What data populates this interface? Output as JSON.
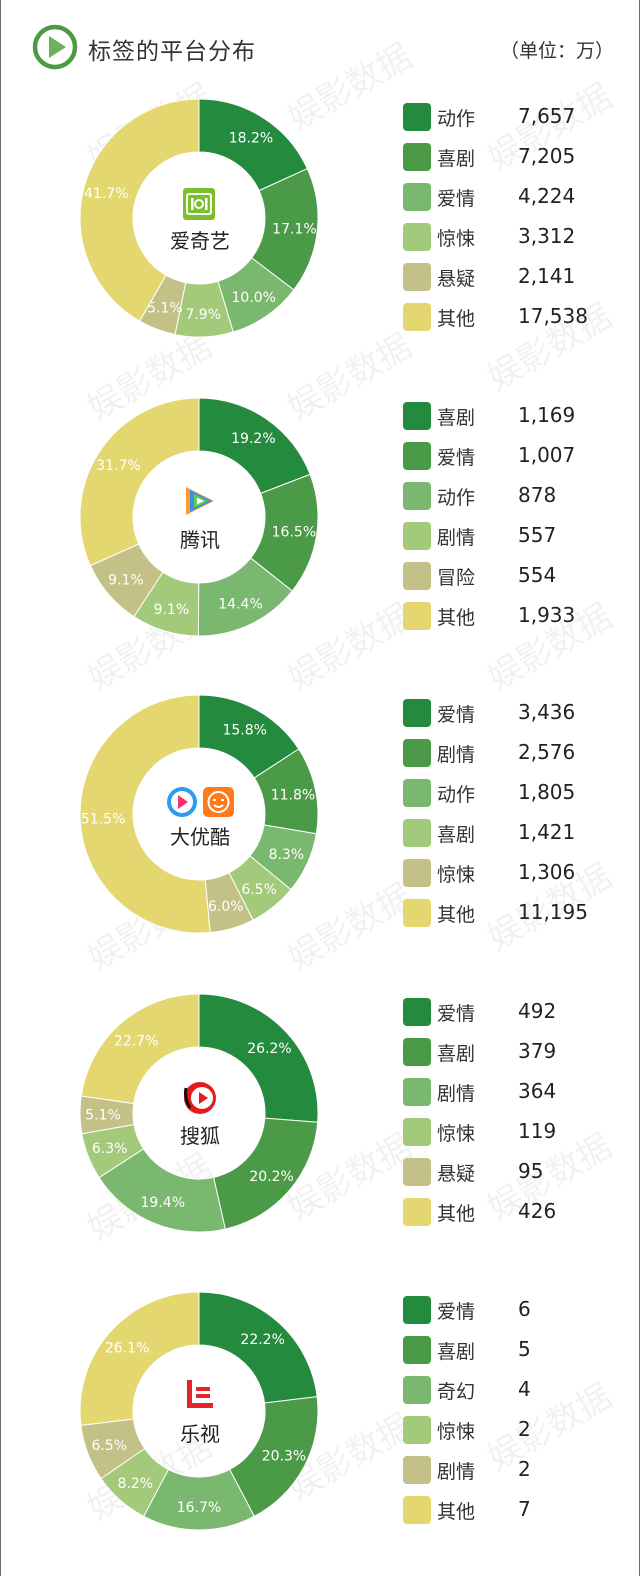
{
  "header": {
    "title": "标签的平台分布",
    "unit": "（单位：万）"
  },
  "watermark": "娱影数据",
  "colors": [
    "#248a3d",
    "#4a9a48",
    "#79b86e",
    "#a3c97b",
    "#c3c187",
    "#e5d770"
  ],
  "chart_data": [
    {
      "type": "pie",
      "platform": "爱奇艺",
      "categories": [
        "动作",
        "喜剧",
        "爱情",
        "惊悚",
        "悬疑",
        "其他"
      ],
      "values": [
        7657,
        7205,
        4224,
        3312,
        2141,
        17538
      ],
      "value_labels": [
        "7,657",
        "7,205",
        "4,224",
        "3,312",
        "2,141",
        "17,538"
      ],
      "percent_labels": [
        "18.2%",
        "17.1%",
        "10.0%",
        "7.9%",
        "5.1%",
        "41.7%"
      ]
    },
    {
      "type": "pie",
      "platform": "腾讯",
      "categories": [
        "喜剧",
        "爱情",
        "动作",
        "剧情",
        "冒险",
        "其他"
      ],
      "values": [
        1169,
        1007,
        878,
        557,
        554,
        1933
      ],
      "value_labels": [
        "1,169",
        "1,007",
        "878",
        "557",
        "554",
        "1,933"
      ],
      "percent_labels": [
        "19.2%",
        "16.5%",
        "14.4%",
        "9.1%",
        "9.1%",
        "31.7%"
      ]
    },
    {
      "type": "pie",
      "platform": "大优酷",
      "categories": [
        "爱情",
        "剧情",
        "动作",
        "喜剧",
        "惊悚",
        "其他"
      ],
      "values": [
        3436,
        2576,
        1805,
        1421,
        1306,
        11195
      ],
      "value_labels": [
        "3,436",
        "2,576",
        "1,805",
        "1,421",
        "1,306",
        "11,195"
      ],
      "percent_labels": [
        "15.8%",
        "11.8%",
        "8.3%",
        "6.5%",
        "6.0%",
        "51.5%"
      ]
    },
    {
      "type": "pie",
      "platform": "搜狐",
      "categories": [
        "爱情",
        "喜剧",
        "剧情",
        "惊悚",
        "悬疑",
        "其他"
      ],
      "values": [
        492,
        379,
        364,
        119,
        95,
        426
      ],
      "value_labels": [
        "492",
        "379",
        "364",
        "119",
        "95",
        "426"
      ],
      "percent_labels": [
        "26.2%",
        "20.2%",
        "19.4%",
        "6.3%",
        "5.1%",
        "22.7%"
      ]
    },
    {
      "type": "pie",
      "platform": "乐视",
      "categories": [
        "爱情",
        "喜剧",
        "奇幻",
        "惊悚",
        "剧情",
        "其他"
      ],
      "values": [
        6,
        5,
        4,
        2,
        2,
        7
      ],
      "value_labels": [
        "6",
        "5",
        "4",
        "2",
        "2",
        "7"
      ],
      "percent_labels": [
        "22.2%",
        "20.3%",
        "16.7%",
        "8.2%",
        "6.5%",
        "26.1%"
      ]
    }
  ]
}
